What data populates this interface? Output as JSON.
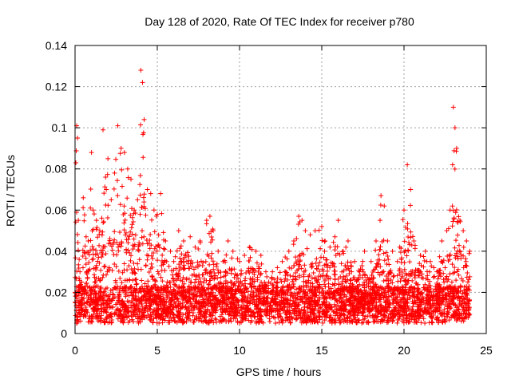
{
  "chart_data": {
    "type": "scatter",
    "title": "Day 128 of 2020, Rate Of TEC Index for receiver p780",
    "xlabel": "GPS time / hours",
    "ylabel": "ROTI / TECUs",
    "xlim": [
      0,
      25
    ],
    "ylim": [
      0,
      0.14
    ],
    "xticks": [
      0,
      5,
      10,
      15,
      20,
      25
    ],
    "xtick_labels": [
      "0",
      "5",
      "10",
      "15",
      "20",
      "25"
    ],
    "yticks": [
      0,
      0.02,
      0.04,
      0.06,
      0.08,
      0.1,
      0.12,
      0.14
    ],
    "ytick_labels": [
      "0",
      "0.02",
      "0.04",
      "0.06",
      "0.08",
      "0.1",
      "0.12",
      "0.14"
    ],
    "grid": true,
    "marker": "+",
    "color": "#ff0000",
    "series": [
      {
        "name": "ROTI",
        "x": [
          0.05,
          0.1,
          0.15,
          0.2,
          0.25,
          0.3,
          0.4,
          0.5,
          0.8,
          1.0,
          1.1,
          1.3,
          1.5,
          1.7,
          1.9,
          2.0,
          2.2,
          2.4,
          2.6,
          2.8,
          3.0,
          3.2,
          3.4,
          3.6,
          3.8,
          4.0,
          4.1,
          4.2,
          4.4,
          4.6,
          4.8,
          5.0,
          5.2,
          5.5,
          5.8,
          6.0,
          6.3,
          6.6,
          7.0,
          7.3,
          7.6,
          8.0,
          8.2,
          8.4,
          8.7,
          9.0,
          9.3,
          9.6,
          10.0,
          10.3,
          10.6,
          11.0,
          11.3,
          11.6,
          12.0,
          12.3,
          12.6,
          13.0,
          13.3,
          13.6,
          13.8,
          14.0,
          14.3,
          14.6,
          15.0,
          15.2,
          15.5,
          15.8,
          16.0,
          16.3,
          16.6,
          17.0,
          17.3,
          17.6,
          18.0,
          18.3,
          18.6,
          18.8,
          19.0,
          19.3,
          19.6,
          20.0,
          20.2,
          20.4,
          20.6,
          21.0,
          21.3,
          21.6,
          22.0,
          22.3,
          22.6,
          22.8,
          23.0,
          23.1,
          23.2,
          23.4,
          23.6,
          23.8,
          24.0
        ],
        "y": [
          0.083,
          0.101,
          0.095,
          0.055,
          0.036,
          0.03,
          0.025,
          0.066,
          0.045,
          0.088,
          0.06,
          0.055,
          0.05,
          0.099,
          0.07,
          0.085,
          0.065,
          0.078,
          0.101,
          0.09,
          0.088,
          0.08,
          0.075,
          0.06,
          0.065,
          0.128,
          0.122,
          0.104,
          0.07,
          0.068,
          0.06,
          0.058,
          0.068,
          0.045,
          0.04,
          0.035,
          0.05,
          0.045,
          0.047,
          0.042,
          0.045,
          0.055,
          0.057,
          0.05,
          0.04,
          0.035,
          0.045,
          0.04,
          0.035,
          0.038,
          0.042,
          0.04,
          0.038,
          0.03,
          0.03,
          0.032,
          0.035,
          0.04,
          0.045,
          0.057,
          0.055,
          0.05,
          0.048,
          0.05,
          0.052,
          0.045,
          0.042,
          0.047,
          0.055,
          0.04,
          0.045,
          0.035,
          0.03,
          0.04,
          0.035,
          0.045,
          0.067,
          0.062,
          0.045,
          0.04,
          0.035,
          0.06,
          0.082,
          0.07,
          0.045,
          0.038,
          0.04,
          0.035,
          0.03,
          0.045,
          0.05,
          0.06,
          0.11,
          0.1,
          0.09,
          0.055,
          0.05,
          0.045,
          0.04
        ]
      }
    ]
  }
}
